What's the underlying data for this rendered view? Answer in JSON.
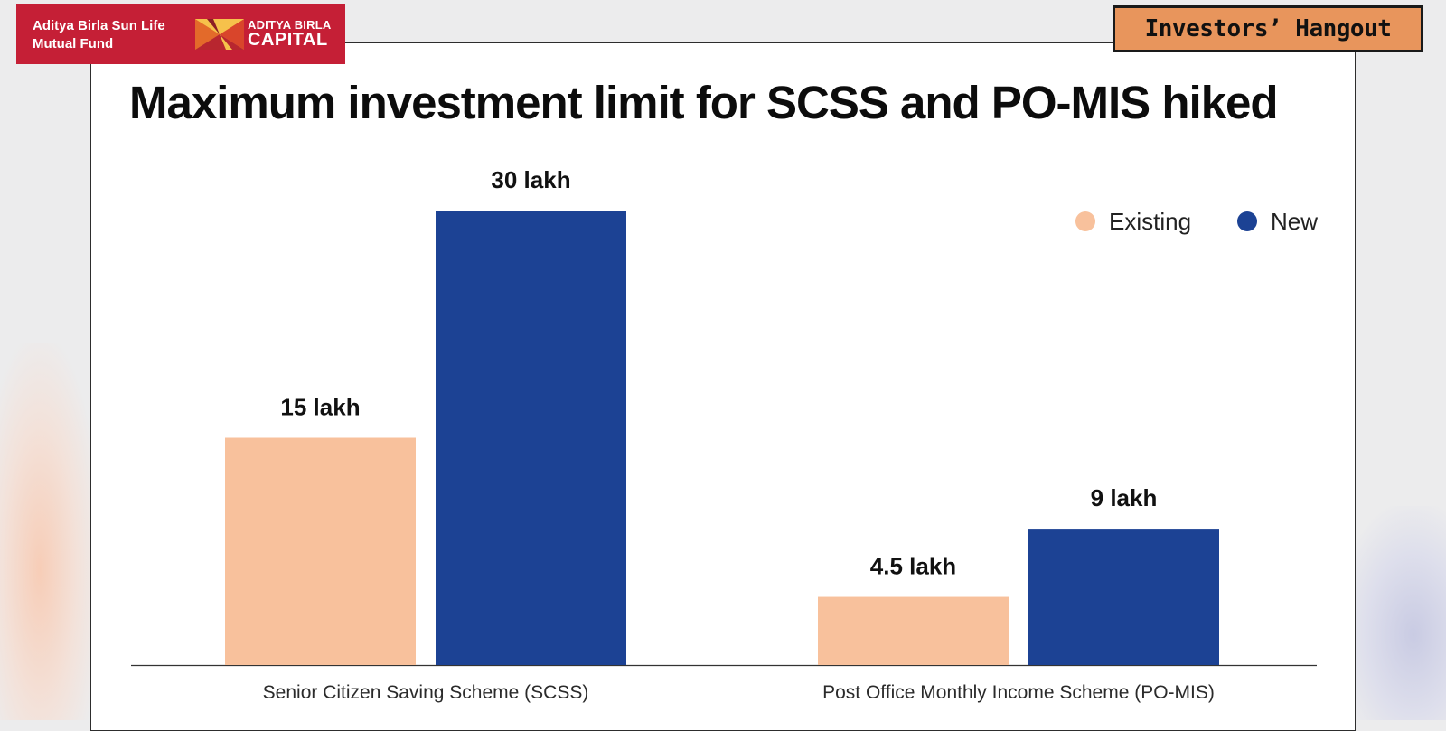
{
  "brand": {
    "mutual_fund_line1": "Aditya Birla Sun Life",
    "mutual_fund_line2": "Mutual Fund",
    "capital_line1": "ADITYA BIRLA",
    "capital_line2": "CAPITAL"
  },
  "badge": {
    "label": "Investors’ Hangout"
  },
  "colors": {
    "brand_red": "#c51f36",
    "existing": "#f8c19c",
    "new": "#1c4294",
    "badge_orange": "#e8955c"
  },
  "chart_data": {
    "type": "bar",
    "title": "Maximum investment limit for SCSS and PO-MIS hiked",
    "categories": [
      "Senior Citizen Saving Scheme (SCSS)",
      "Post Office Monthly Income Scheme (PO-MIS)"
    ],
    "series": [
      {
        "name": "Existing",
        "color": "#f8c19c",
        "values": [
          15,
          4.5
        ],
        "labels": [
          "15 lakh",
          "4.5 lakh"
        ]
      },
      {
        "name": "New",
        "color": "#1c4294",
        "values": [
          30,
          9
        ],
        "labels": [
          "30 lakh",
          "9 lakh"
        ]
      }
    ],
    "unit": "lakh",
    "xlabel": "",
    "ylabel": "",
    "ylim": [
      0,
      30
    ],
    "grid": false,
    "legend": "top-right"
  }
}
